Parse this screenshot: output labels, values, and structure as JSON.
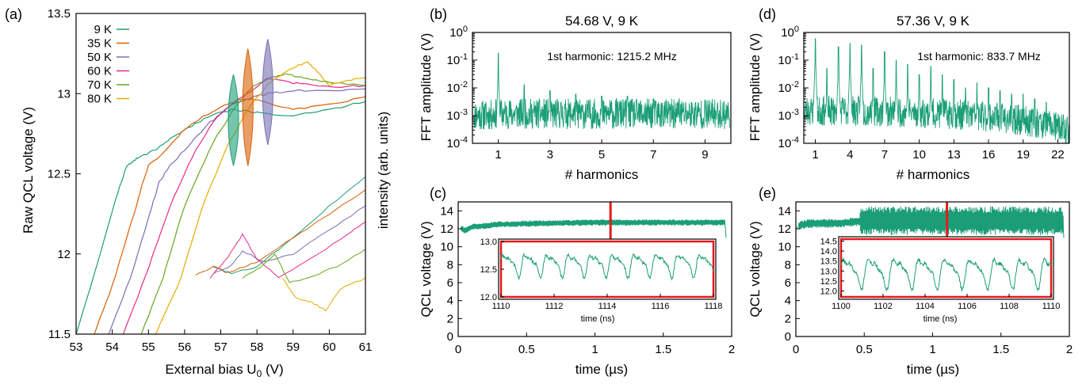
{
  "panel_labels": {
    "a": "(a)",
    "b": "(b)",
    "c": "(c)",
    "d": "(d)",
    "e": "(e)"
  },
  "colors": {
    "9 K": "#1b9e77",
    "35 K": "#d95f02",
    "50 K": "#7570b3",
    "60 K": "#e7298a",
    "70 K": "#66a61e",
    "80 K": "#e6ab02",
    "fft": "#1b9e77",
    "marker": "#e41a1c",
    "inset_frame": "#e41a1c"
  },
  "chart_data": [
    {
      "id": "a",
      "type": "line",
      "xlabel": "External bias U",
      "xlabel_sub": "0",
      "xlabel_unit": " (V)",
      "ylabel": "Raw QCL voltage (V)",
      "ylabel_right": "intensity (arb. units)",
      "xlim": [
        53,
        61
      ],
      "ylim": [
        11.5,
        13.5
      ],
      "xticks": [
        53,
        54,
        55,
        56,
        57,
        58,
        59,
        60,
        61
      ],
      "yticks": [
        11.5,
        12,
        12.5,
        13,
        13.5
      ],
      "ytick_labels": [
        "11.5",
        "12",
        "12.5",
        "13",
        "13.5"
      ],
      "legend_position": "top-left",
      "series": [
        {
          "name": "9 K",
          "x": [
            53.0,
            53.6,
            54.1,
            54.4,
            54.55,
            54.7,
            55.2,
            55.6,
            56.2,
            56.7,
            57.3,
            58.0,
            59.0,
            60.0,
            61.0
          ],
          "y": [
            11.5,
            11.95,
            12.35,
            12.55,
            12.57,
            12.6,
            12.65,
            12.72,
            12.8,
            12.86,
            12.9,
            12.88,
            12.86,
            12.9,
            12.95
          ]
        },
        {
          "name": "35 K",
          "x": [
            53.5,
            54.0,
            54.6,
            54.85,
            55.0,
            55.5,
            56.0,
            56.6,
            57.1,
            57.7,
            58.2,
            59.0,
            60.0,
            61.0
          ],
          "y": [
            11.5,
            11.8,
            12.25,
            12.45,
            12.55,
            12.65,
            12.78,
            12.87,
            12.93,
            12.97,
            12.95,
            12.9,
            12.93,
            12.98
          ]
        },
        {
          "name": "50 K",
          "x": [
            53.9,
            54.5,
            55.1,
            55.3,
            55.6,
            56.2,
            56.7,
            57.3,
            57.9,
            58.3,
            59.0,
            60.0,
            61.0
          ],
          "y": [
            11.5,
            11.85,
            12.3,
            12.45,
            12.55,
            12.7,
            12.82,
            12.93,
            12.98,
            13.0,
            13.02,
            13.02,
            13.03
          ]
        },
        {
          "name": "60 K",
          "x": [
            54.3,
            54.9,
            55.6,
            56.2,
            56.8,
            57.4,
            57.9,
            58.3,
            58.6,
            59.2,
            60.0,
            61.0
          ],
          "y": [
            11.5,
            11.85,
            12.3,
            12.6,
            12.83,
            12.95,
            13.02,
            13.1,
            13.08,
            13.06,
            13.04,
            13.05
          ]
        },
        {
          "name": "70 K",
          "x": [
            54.8,
            55.4,
            56.0,
            56.8,
            57.4,
            57.9,
            58.4,
            58.8,
            59.3,
            60.0,
            61.0
          ],
          "y": [
            11.5,
            11.85,
            12.3,
            12.7,
            12.92,
            13.05,
            13.1,
            13.12,
            13.1,
            13.07,
            13.05
          ]
        },
        {
          "name": "80 K",
          "x": [
            55.2,
            55.9,
            56.5,
            57.2,
            57.8,
            58.4,
            58.9,
            59.4,
            59.7,
            60.0,
            60.4,
            61.0
          ],
          "y": [
            11.5,
            11.85,
            12.3,
            12.68,
            12.92,
            13.08,
            13.15,
            13.2,
            13.13,
            13.05,
            13.08,
            13.1
          ]
        }
      ],
      "lower_branch": [
        {
          "name": "9 K",
          "x": [
            56.8,
            57.3,
            58.0,
            59.0,
            60.0,
            61.0
          ],
          "y": [
            11.92,
            11.88,
            11.92,
            12.1,
            12.3,
            12.48
          ]
        },
        {
          "name": "35 K",
          "x": [
            56.3,
            56.8,
            57.2,
            58.0,
            59.0,
            60.0,
            61.0
          ],
          "y": [
            11.87,
            11.92,
            11.88,
            11.95,
            12.1,
            12.25,
            12.4
          ]
        },
        {
          "name": "50 K",
          "x": [
            56.8,
            57.3,
            57.6,
            58.2,
            59.0,
            60.0,
            61.0
          ],
          "y": [
            11.88,
            11.93,
            12.02,
            11.95,
            12.0,
            12.15,
            12.3
          ]
        },
        {
          "name": "60 K",
          "x": [
            56.7,
            57.2,
            57.6,
            58.0,
            58.6,
            59.5,
            60.5,
            61.0
          ],
          "y": [
            11.85,
            11.98,
            12.12,
            11.97,
            11.85,
            11.97,
            12.12,
            12.2
          ]
        },
        {
          "name": "70 K",
          "x": [
            57.6,
            58.1,
            58.5,
            58.9,
            59.4,
            60.2,
            61.0
          ],
          "y": [
            11.85,
            11.92,
            12.0,
            11.82,
            11.85,
            11.92,
            12.03
          ]
        },
        {
          "name": "80 K",
          "x": [
            58.7,
            59.1,
            59.5,
            59.9,
            60.3,
            61.0
          ],
          "y": [
            11.85,
            11.72,
            11.7,
            11.65,
            11.78,
            11.85
          ]
        }
      ],
      "spectra_peaks": [
        {
          "name": "9 K",
          "x": 57.35,
          "y_low": 12.55,
          "y_high": 13.12
        },
        {
          "name": "35 K",
          "x": 57.75,
          "y_low": 12.55,
          "y_high": 13.28
        },
        {
          "name": "50 K",
          "x": 58.3,
          "y_low": 12.68,
          "y_high": 13.34
        }
      ]
    },
    {
      "id": "b",
      "type": "line",
      "title": "54.68 V, 9 K",
      "annotation": "1st harmonic: 1215.2 MHz",
      "xlabel": "# harmonics",
      "ylabel": "FFT amplitude (V)",
      "xlim": [
        0,
        10
      ],
      "ylim_log10": [
        -4,
        0
      ],
      "xticks": [
        1,
        3,
        5,
        7,
        9
      ],
      "yticks_exp": [
        -4,
        -3,
        -2,
        -1,
        0
      ],
      "noise_floor": 0.0015,
      "peaks": [
        {
          "x": 1,
          "y": 0.18
        },
        {
          "x": 2,
          "y": 0.013
        },
        {
          "x": 3,
          "y": 0.008
        },
        {
          "x": 4,
          "y": 0.006
        },
        {
          "x": 5,
          "y": 0.005
        },
        {
          "x": 6,
          "y": 0.005
        },
        {
          "x": 7,
          "y": 0.004
        },
        {
          "x": 8,
          "y": 0.004
        },
        {
          "x": 9,
          "y": 0.0035
        }
      ]
    },
    {
      "id": "c",
      "type": "line",
      "xlabel": "time (µs)",
      "ylabel": "QCL voltage (V)",
      "xlim": [
        0,
        2
      ],
      "ylim": [
        0,
        15
      ],
      "xticks": [
        0,
        0.5,
        1,
        1.5,
        2
      ],
      "xtick_labels": [
        "0",
        "0.5",
        "1",
        "1.5",
        "2"
      ],
      "yticks": [
        0,
        2,
        4,
        6,
        8,
        10,
        12,
        14
      ],
      "trace": {
        "x": [
          0,
          0.03,
          0.05,
          0.1,
          0.3,
          0.6,
          1.0,
          1.4,
          1.8,
          1.95,
          1.96
        ],
        "y": [
          12.0,
          12.0,
          11.8,
          12.2,
          12.5,
          12.6,
          12.7,
          12.7,
          12.7,
          12.7,
          11.0
        ],
        "band": 0.35
      },
      "marker_x": 1.114,
      "inset": {
        "xlabel": "time (ns)",
        "xlim": [
          1110,
          1118
        ],
        "ylim": [
          12.0,
          13.0
        ],
        "xticks": [
          1110,
          1112,
          1114,
          1116,
          1118
        ],
        "yticks": [
          12.0,
          12.5,
          13.0
        ],
        "ytick_labels": [
          "12.0",
          "12.5",
          "13.0"
        ],
        "period_ns": 0.823,
        "mean": 12.6,
        "amplitude": 0.22
      }
    },
    {
      "id": "d",
      "type": "line",
      "title": "57.36 V, 9 K",
      "annotation": "1st harmonic: 833.7 MHz",
      "xlabel": "# harmonics",
      "ylabel": "FFT amplitude (V)",
      "xlim": [
        0,
        23
      ],
      "ylim_log10": [
        -4,
        0
      ],
      "xticks": [
        1,
        4,
        7,
        10,
        13,
        16,
        19,
        22
      ],
      "yticks_exp": [
        -4,
        -3,
        -2,
        -1,
        0
      ],
      "noise_floor": 0.0012,
      "peaks": [
        {
          "x": 1,
          "y": 0.6
        },
        {
          "x": 2,
          "y": 0.05
        },
        {
          "x": 3,
          "y": 0.3
        },
        {
          "x": 4,
          "y": 0.4
        },
        {
          "x": 5,
          "y": 0.35
        },
        {
          "x": 6,
          "y": 0.05
        },
        {
          "x": 7,
          "y": 0.2
        },
        {
          "x": 8,
          "y": 0.1
        },
        {
          "x": 9,
          "y": 0.07
        },
        {
          "x": 10,
          "y": 0.03
        },
        {
          "x": 11,
          "y": 0.06
        },
        {
          "x": 12,
          "y": 0.03
        },
        {
          "x": 13,
          "y": 0.02
        },
        {
          "x": 14,
          "y": 0.01
        },
        {
          "x": 15,
          "y": 0.015
        },
        {
          "x": 16,
          "y": 0.01
        },
        {
          "x": 17,
          "y": 0.008
        },
        {
          "x": 18,
          "y": 0.006
        },
        {
          "x": 19,
          "y": 0.006
        },
        {
          "x": 20,
          "y": 0.004
        },
        {
          "x": 21,
          "y": 0.003
        }
      ]
    },
    {
      "id": "e",
      "type": "line",
      "xlabel": "time (µs)",
      "ylabel": "QCL voltage (V)",
      "xlim": [
        0,
        2
      ],
      "ylim": [
        0,
        15
      ],
      "xticks": [
        0,
        0.5,
        1,
        1.5,
        2
      ],
      "xtick_labels": [
        "0",
        "0.5",
        "1",
        "1.5",
        "2"
      ],
      "yticks": [
        0,
        2,
        4,
        6,
        8,
        10,
        12,
        14
      ],
      "trace": {
        "x": [
          0,
          0.03,
          0.1,
          0.3,
          0.45,
          0.5,
          1.0,
          1.5,
          1.9,
          1.95,
          1.96
        ],
        "y": [
          12.0,
          12.4,
          12.6,
          12.6,
          12.8,
          12.9,
          12.9,
          12.9,
          12.9,
          12.9,
          11.0
        ],
        "band_early": 0.5,
        "band_late": 1.6,
        "band_switch": 0.47
      },
      "marker_x": 1.105,
      "inset": {
        "xlabel": "time (ns)",
        "xlim": [
          1100,
          1110
        ],
        "ylim": [
          11.7,
          14.6
        ],
        "xticks": [
          1100,
          1102,
          1104,
          1106,
          1108,
          1110
        ],
        "yticks": [
          12.0,
          12.5,
          13.0,
          13.5,
          14.0,
          14.5
        ],
        "ytick_labels": [
          "12.0",
          "12.5",
          "13.0",
          "13.5",
          "14.0",
          "14.5"
        ],
        "period_ns": 1.2,
        "mean": 13.0,
        "amplitude": 0.8
      }
    }
  ]
}
